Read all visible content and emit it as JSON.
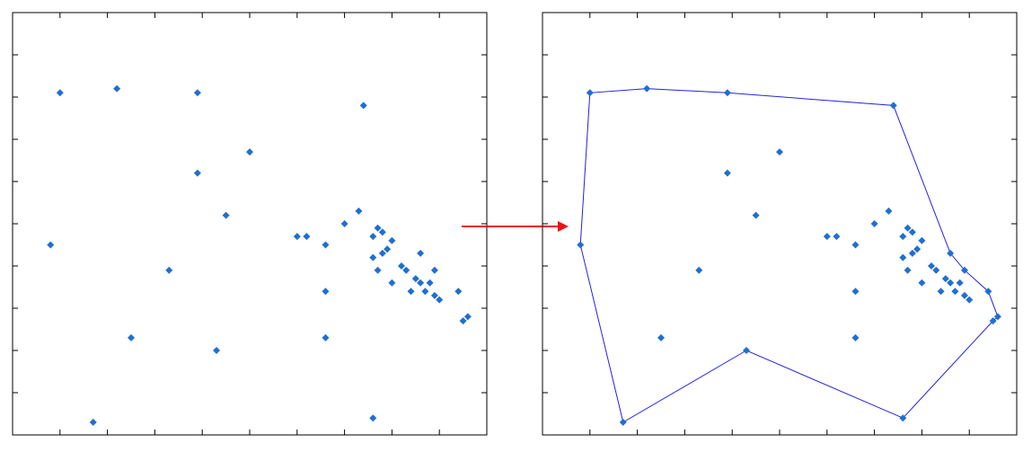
{
  "colors": {
    "point": "#1f6fd1",
    "hull": "#2222dd",
    "arrow": "#ee1111",
    "frame": "#000000"
  },
  "points": [
    [
      0.1,
      0.81
    ],
    [
      0.22,
      0.82
    ],
    [
      0.39,
      0.81
    ],
    [
      0.74,
      0.78
    ],
    [
      0.5,
      0.67
    ],
    [
      0.39,
      0.62
    ],
    [
      0.45,
      0.52
    ],
    [
      0.73,
      0.53
    ],
    [
      0.7,
      0.5
    ],
    [
      0.77,
      0.49
    ],
    [
      0.78,
      0.48
    ],
    [
      0.6,
      0.47
    ],
    [
      0.62,
      0.47
    ],
    [
      0.76,
      0.47
    ],
    [
      0.8,
      0.46
    ],
    [
      0.66,
      0.45
    ],
    [
      0.79,
      0.44
    ],
    [
      0.78,
      0.43
    ],
    [
      0.08,
      0.45
    ],
    [
      0.86,
      0.43
    ],
    [
      0.76,
      0.42
    ],
    [
      0.82,
      0.4
    ],
    [
      0.83,
      0.39
    ],
    [
      0.33,
      0.39
    ],
    [
      0.77,
      0.39
    ],
    [
      0.89,
      0.39
    ],
    [
      0.85,
      0.37
    ],
    [
      0.86,
      0.36
    ],
    [
      0.8,
      0.36
    ],
    [
      0.88,
      0.36
    ],
    [
      0.66,
      0.34
    ],
    [
      0.84,
      0.34
    ],
    [
      0.87,
      0.34
    ],
    [
      0.9,
      0.32
    ],
    [
      0.94,
      0.34
    ],
    [
      0.89,
      0.33
    ],
    [
      0.96,
      0.28
    ],
    [
      0.95,
      0.27
    ],
    [
      0.25,
      0.23
    ],
    [
      0.66,
      0.23
    ],
    [
      0.43,
      0.2
    ],
    [
      0.17,
      0.03
    ],
    [
      0.76,
      0.04
    ]
  ],
  "hull": [
    [
      0.08,
      0.45
    ],
    [
      0.1,
      0.81
    ],
    [
      0.22,
      0.82
    ],
    [
      0.39,
      0.81
    ],
    [
      0.74,
      0.78
    ],
    [
      0.86,
      0.43
    ],
    [
      0.89,
      0.39
    ],
    [
      0.94,
      0.34
    ],
    [
      0.96,
      0.28
    ],
    [
      0.95,
      0.27
    ],
    [
      0.76,
      0.04
    ],
    [
      0.43,
      0.2
    ],
    [
      0.17,
      0.03
    ]
  ]
}
